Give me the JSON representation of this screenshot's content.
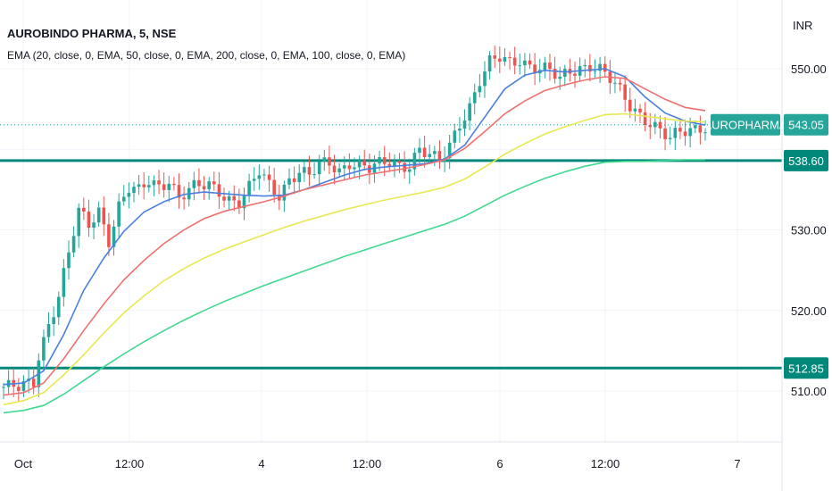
{
  "chart_data": {
    "type": "candlestick",
    "title": "AUROBINDO PHARMA, 5, NSE",
    "indicator_label": "EMA (20, close, 0, EMA, 50, close, 0, EMA, 200, close, 0, EMA, 100, close, 0, EMA)",
    "currency": "INR",
    "ylim": [
      500,
      557
    ],
    "y_ticks": [
      "550.00",
      "530.00",
      "520.00",
      "510.00"
    ],
    "x_ticks": [
      "Oct",
      "12:00",
      "4",
      "12:00",
      "6",
      "12:00",
      "7"
    ],
    "grid": true,
    "horizontal_lines": [
      {
        "price": 538.6,
        "label": "538.60"
      },
      {
        "price": 512.85,
        "label": "512.85"
      }
    ],
    "last_price": {
      "price": 543.05,
      "label": "543.05",
      "symbol": "AUROPHARMA"
    },
    "series": [
      {
        "name": "EMA 20",
        "color": "#4a7fe0",
        "points": [
          [
            0,
            510.8
          ],
          [
            4,
            511.0
          ],
          [
            8,
            512.5
          ],
          [
            12,
            517
          ],
          [
            16,
            522.5
          ],
          [
            20,
            526.5
          ],
          [
            24,
            529.8
          ],
          [
            28,
            532.2
          ],
          [
            32,
            533.5
          ],
          [
            36,
            534.4
          ],
          [
            40,
            534.7
          ],
          [
            44,
            534.5
          ],
          [
            48,
            534.3
          ],
          [
            52,
            534.2
          ],
          [
            56,
            534.3
          ],
          [
            60,
            535
          ],
          [
            64,
            535.9
          ],
          [
            68,
            536.8
          ],
          [
            72,
            537.5
          ],
          [
            76,
            537.8
          ],
          [
            80,
            538.0
          ],
          [
            84,
            538.2
          ],
          [
            88,
            538.8
          ],
          [
            92,
            540.5
          ],
          [
            96,
            544
          ],
          [
            100,
            547.5
          ],
          [
            104,
            549.2
          ],
          [
            108,
            549.8
          ],
          [
            112,
            549.6
          ],
          [
            116,
            549.8
          ],
          [
            120,
            550.0
          ],
          [
            124,
            549.0
          ],
          [
            128,
            546.5
          ],
          [
            132,
            544.5
          ],
          [
            136,
            543.5
          ],
          [
            140,
            543.0
          ]
        ]
      },
      {
        "name": "EMA 50",
        "color": "#f07070",
        "points": [
          [
            0,
            509.5
          ],
          [
            4,
            509.8
          ],
          [
            8,
            511
          ],
          [
            12,
            514
          ],
          [
            16,
            517.5
          ],
          [
            20,
            520.8
          ],
          [
            24,
            523.8
          ],
          [
            28,
            526.2
          ],
          [
            32,
            528.3
          ],
          [
            36,
            530
          ],
          [
            40,
            531.4
          ],
          [
            44,
            532.3
          ],
          [
            48,
            532.9
          ],
          [
            52,
            533.5
          ],
          [
            56,
            534.2
          ],
          [
            60,
            535
          ],
          [
            64,
            535.6
          ],
          [
            68,
            536.2
          ],
          [
            72,
            536.8
          ],
          [
            76,
            537.2
          ],
          [
            80,
            537.6
          ],
          [
            84,
            538.1
          ],
          [
            88,
            538.7
          ],
          [
            92,
            540.1
          ],
          [
            96,
            542.2
          ],
          [
            100,
            544.4
          ],
          [
            104,
            546.0
          ],
          [
            108,
            547.3
          ],
          [
            112,
            548.0
          ],
          [
            116,
            548.6
          ],
          [
            120,
            549.0
          ],
          [
            124,
            548.8
          ],
          [
            128,
            547.5
          ],
          [
            132,
            546.2
          ],
          [
            136,
            545.2
          ],
          [
            140,
            544.8
          ]
        ]
      },
      {
        "name": "EMA 100",
        "color": "#e8e850",
        "points": [
          [
            0,
            508.3
          ],
          [
            4,
            508.8
          ],
          [
            8,
            509.8
          ],
          [
            12,
            512
          ],
          [
            16,
            514.5
          ],
          [
            20,
            517.2
          ],
          [
            24,
            519.7
          ],
          [
            28,
            521.8
          ],
          [
            32,
            523.7
          ],
          [
            36,
            525.2
          ],
          [
            40,
            526.5
          ],
          [
            44,
            527.6
          ],
          [
            48,
            528.5
          ],
          [
            52,
            529.4
          ],
          [
            56,
            530.3
          ],
          [
            60,
            531.1
          ],
          [
            64,
            531.8
          ],
          [
            68,
            532.5
          ],
          [
            72,
            533.1
          ],
          [
            76,
            533.7
          ],
          [
            80,
            534.2
          ],
          [
            84,
            534.7
          ],
          [
            88,
            535.3
          ],
          [
            92,
            536.3
          ],
          [
            96,
            537.8
          ],
          [
            100,
            539.4
          ],
          [
            104,
            540.7
          ],
          [
            108,
            541.9
          ],
          [
            112,
            542.8
          ],
          [
            116,
            543.6
          ],
          [
            120,
            544.3
          ],
          [
            124,
            544.4
          ],
          [
            128,
            544.1
          ],
          [
            132,
            543.8
          ],
          [
            136,
            543.5
          ],
          [
            140,
            543.4
          ]
        ]
      },
      {
        "name": "EMA 200",
        "color": "#40d890",
        "points": [
          [
            0,
            507.3
          ],
          [
            4,
            507.6
          ],
          [
            8,
            508.2
          ],
          [
            12,
            509.6
          ],
          [
            16,
            511.3
          ],
          [
            20,
            513
          ],
          [
            24,
            514.6
          ],
          [
            28,
            516.1
          ],
          [
            32,
            517.5
          ],
          [
            36,
            518.8
          ],
          [
            40,
            520
          ],
          [
            44,
            521.1
          ],
          [
            48,
            522.1
          ],
          [
            52,
            523.1
          ],
          [
            56,
            524.0
          ],
          [
            60,
            524.9
          ],
          [
            64,
            525.8
          ],
          [
            68,
            526.7
          ],
          [
            72,
            527.5
          ],
          [
            76,
            528.3
          ],
          [
            80,
            529.1
          ],
          [
            84,
            529.9
          ],
          [
            88,
            530.7
          ],
          [
            92,
            531.7
          ],
          [
            96,
            533.0
          ],
          [
            100,
            534.3
          ],
          [
            104,
            535.4
          ],
          [
            108,
            536.4
          ],
          [
            112,
            537.2
          ],
          [
            116,
            537.9
          ],
          [
            120,
            538.4
          ],
          [
            124,
            538.5
          ],
          [
            128,
            538.5
          ],
          [
            132,
            538.6
          ],
          [
            136,
            538.7
          ],
          [
            140,
            538.7
          ]
        ]
      }
    ],
    "candle_path": [
      [
        0,
        510.5
      ],
      [
        3,
        510.2
      ],
      [
        6,
        511
      ],
      [
        7,
        514.5
      ],
      [
        9,
        518.5
      ],
      [
        11,
        522
      ],
      [
        13,
        527
      ],
      [
        15,
        532
      ],
      [
        17,
        530.5
      ],
      [
        19,
        532.5
      ],
      [
        21,
        529
      ],
      [
        23,
        533
      ],
      [
        25,
        535
      ],
      [
        27,
        534.5
      ],
      [
        29,
        536
      ],
      [
        31,
        535.5
      ],
      [
        33,
        536.5
      ],
      [
        35,
        534
      ],
      [
        37,
        534.8
      ],
      [
        39,
        535.2
      ],
      [
        41,
        535.5
      ],
      [
        43,
        535
      ],
      [
        45,
        534
      ],
      [
        47,
        533.5
      ],
      [
        49,
        535
      ],
      [
        51,
        537
      ],
      [
        53,
        535.5
      ],
      [
        55,
        534.5
      ],
      [
        57,
        536.5
      ],
      [
        59,
        537.3
      ],
      [
        61,
        536.5
      ],
      [
        63,
        537.8
      ],
      [
        65,
        538.3
      ],
      [
        67,
        537.5
      ],
      [
        69,
        538.6
      ],
      [
        71,
        538.0
      ],
      [
        73,
        537.4
      ],
      [
        75,
        537.9
      ],
      [
        77,
        538.5
      ],
      [
        79,
        538.2
      ],
      [
        81,
        538.3
      ],
      [
        83,
        540
      ],
      [
        85,
        539
      ],
      [
        87,
        538.2
      ],
      [
        89,
        540.5
      ],
      [
        91,
        543.5
      ],
      [
        93,
        545.5
      ],
      [
        95,
        548.5
      ],
      [
        97,
        550.5
      ],
      [
        99,
        551.2
      ],
      [
        101,
        550.8
      ],
      [
        103,
        551.4
      ],
      [
        105,
        550.5
      ],
      [
        107,
        550.0
      ],
      [
        109,
        549.5
      ],
      [
        111,
        548.5
      ],
      [
        113,
        549.8
      ],
      [
        115,
        550.3
      ],
      [
        117,
        550.6
      ],
      [
        119,
        549.8
      ],
      [
        121,
        548.5
      ],
      [
        123,
        547
      ],
      [
        125,
        545.5
      ],
      [
        127,
        544.5
      ],
      [
        129,
        543.5
      ],
      [
        131,
        542.2
      ],
      [
        133,
        541
      ],
      [
        135,
        542
      ],
      [
        137,
        542.5
      ],
      [
        139,
        543.0
      ],
      [
        140,
        543.05
      ]
    ]
  }
}
